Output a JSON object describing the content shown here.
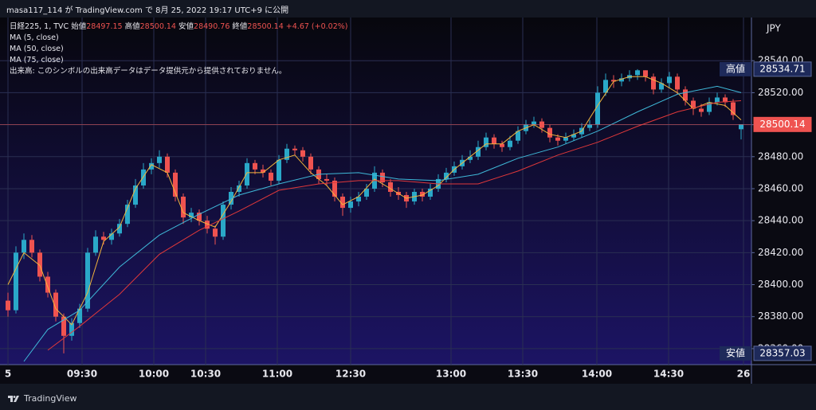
{
  "chart_data": {
    "type": "candlestick",
    "published": "masa117_114 が TradingView.com で 8月 25, 2022 19:17 UTC+9 に公開",
    "symbol": "日経225, 1, TVC",
    "ohlc_labels": {
      "open": "始値",
      "high": "高値",
      "low": "安値",
      "close": "終値"
    },
    "change": "+4.67 (+0.02%)",
    "volume_note": "出来高: このシンボルの出来高データはデータ提供元から提供されておりません。",
    "currency": "JPY",
    "brand": "TradingView",
    "up_color": "#2aa8c8",
    "down_color": "#ef5350",
    "grid": true,
    "xlim": [
      -1,
      93.3
    ],
    "ylim": [
      28350,
      28567
    ],
    "xticks": [
      {
        "value": 0,
        "label": "5"
      },
      {
        "value": 9.3,
        "label": "09:30"
      },
      {
        "value": 18.3,
        "label": "10:00"
      },
      {
        "value": 24.8,
        "label": "10:30"
      },
      {
        "value": 33.8,
        "label": "11:00"
      },
      {
        "value": 43,
        "label": "12:30"
      },
      {
        "value": 55.6,
        "label": "13:00"
      },
      {
        "value": 64.6,
        "label": "13:30"
      },
      {
        "value": 73.9,
        "label": "14:00"
      },
      {
        "value": 82.9,
        "label": "14:30"
      },
      {
        "value": 92.3,
        "label": "26"
      }
    ],
    "yticks": [
      {
        "value": 28360,
        "label": "28360.00"
      },
      {
        "value": 28380,
        "label": "28380.00"
      },
      {
        "value": 28400,
        "label": "28400.00"
      },
      {
        "value": 28420,
        "label": "28420.00"
      },
      {
        "value": 28440,
        "label": "28440.00"
      },
      {
        "value": 28460,
        "label": "28460.00"
      },
      {
        "value": 28480,
        "label": "28480.00"
      },
      {
        "value": 28500,
        "label": "28500.00"
      },
      {
        "value": 28520,
        "label": "28520.00"
      },
      {
        "value": 28540,
        "label": "28540.00"
      }
    ],
    "open": [
      28390,
      28384,
      28420,
      28428,
      28420,
      28405,
      28395,
      28380,
      28368,
      28376,
      28385,
      28420,
      28430,
      28428,
      28432,
      28438,
      28450,
      28462,
      28472,
      28476,
      28480,
      28470,
      28455,
      28442,
      28445,
      28440,
      28435,
      28430,
      28450,
      28458,
      28462,
      28476,
      28472,
      28470,
      28465,
      28478,
      28485,
      28484,
      28480,
      28472,
      28466,
      28465,
      28455,
      28448,
      28452,
      28455,
      28460,
      28470,
      28464,
      28458,
      28456,
      28452,
      28458,
      28455,
      28460,
      28466,
      28470,
      28474,
      28478,
      28480,
      28486,
      28492,
      28488,
      28486,
      28490,
      28496,
      28500,
      28502,
      28498,
      28492,
      28490,
      28492,
      28494,
      28498,
      28500,
      28520,
      28528,
      28527,
      28529,
      28531,
      28534,
      28530,
      28522,
      28526,
      28530,
      28522,
      28515,
      28510,
      28508,
      28514,
      28517,
      28514,
      28497.15
    ],
    "high": [
      28395,
      28424,
      28432,
      28431,
      28422,
      28408,
      28397,
      28382,
      28379,
      28388,
      28423,
      28434,
      28433,
      28435,
      28441,
      28453,
      28466,
      28476,
      28479,
      28484,
      28482,
      28472,
      28457,
      28448,
      28447,
      28443,
      28437,
      28452,
      28461,
      28465,
      28479,
      28478,
      28475,
      28472,
      28481,
      28488,
      28487,
      28486,
      28482,
      28474,
      28469,
      28467,
      28457,
      28455,
      28458,
      28463,
      28474,
      28472,
      28466,
      28461,
      28458,
      28460,
      28460,
      28463,
      28469,
      28473,
      28477,
      28481,
      28484,
      28490,
      28495,
      28494,
      28490,
      28493,
      28499,
      28503,
      28505,
      28504,
      28500,
      28494,
      28495,
      28497,
      28501,
      28503,
      28524,
      28532,
      28531,
      28532,
      28534,
      28534.71,
      28534,
      28532,
      28529,
      28533,
      28532,
      28524,
      28517,
      28513,
      28517,
      28520,
      28519,
      28516,
      28500.14
    ],
    "low": [
      28380,
      28382,
      28416,
      28417,
      28402,
      28392,
      28377,
      28357.03,
      28365,
      28373,
      28383,
      28418,
      28425,
      28425,
      28430,
      28436,
      28448,
      28460,
      28469,
      28473,
      28467,
      28452,
      28438,
      28439,
      28437,
      28432,
      28425,
      28428,
      28447,
      28455,
      28460,
      28469,
      28467,
      28462,
      28463,
      28476,
      28481,
      28477,
      28469,
      28463,
      28462,
      28452,
      28443,
      28445,
      28449,
      28453,
      28458,
      28461,
      28455,
      28453,
      28448,
      28450,
      28452,
      28453,
      28458,
      28464,
      28468,
      28472,
      28476,
      28478,
      28484,
      28485,
      28483,
      28484,
      28488,
      28494,
      28498,
      28495,
      28489,
      28487,
      28488,
      28490,
      28492,
      28496,
      28498,
      28518,
      28523,
      28524,
      28527,
      28528,
      28527,
      28519,
      28520,
      28523,
      28519,
      28512,
      28506,
      28505,
      28506,
      28512,
      28511,
      28503,
      28490.76
    ],
    "close": [
      28384,
      28420,
      28428,
      28420,
      28405,
      28395,
      28380,
      28368,
      28376,
      28385,
      28420,
      28430,
      28428,
      28432,
      28438,
      28450,
      28462,
      28472,
      28476,
      28480,
      28470,
      28455,
      28442,
      28445,
      28440,
      28435,
      28430,
      28450,
      28458,
      28462,
      28476,
      28472,
      28470,
      28465,
      28478,
      28485,
      28484,
      28480,
      28472,
      28466,
      28465,
      28455,
      28448,
      28452,
      28455,
      28460,
      28470,
      28464,
      28458,
      28456,
      28452,
      28458,
      28455,
      28460,
      28466,
      28470,
      28474,
      28478,
      28480,
      28486,
      28492,
      28488,
      28486,
      28490,
      28496,
      28500,
      28502,
      28498,
      28492,
      28490,
      28492,
      28494,
      28498,
      28500,
      28520,
      28528,
      28527,
      28529,
      28531,
      28534,
      28530,
      28522,
      28526,
      28530,
      28522,
      28515,
      28510,
      28508,
      28514,
      28517,
      28514,
      28506,
      28500.14
    ],
    "series": [
      {
        "name": "MA (5, close)",
        "color": "#f2b43c",
        "x": [
          0,
          2,
          4,
          6,
          8,
          10,
          12,
          14,
          16,
          18,
          20,
          22,
          24,
          26,
          28,
          30,
          32,
          34,
          36,
          38,
          40,
          42,
          44,
          46,
          48,
          50,
          52,
          54,
          56,
          58,
          60,
          62,
          64,
          66,
          68,
          70,
          72,
          74,
          76,
          78,
          80,
          82,
          84,
          86,
          88,
          90,
          92
        ],
        "values": [
          28400,
          28420,
          28412,
          28385,
          28375,
          28395,
          28427,
          28436,
          28460,
          28475,
          28470,
          28445,
          28440,
          28436,
          28452,
          28470,
          28470,
          28478,
          28481,
          28470,
          28462,
          28450,
          28455,
          28466,
          28460,
          28454,
          28456,
          28462,
          28472,
          28480,
          28488,
          28488,
          28496,
          28500,
          28494,
          28492,
          28496,
          28512,
          28527,
          28530,
          28530,
          28526,
          28520,
          28510,
          28514,
          28512,
          28503
        ]
      },
      {
        "name": "MA (50, close)",
        "color": "#3fb8d8",
        "x": [
          2,
          5,
          9,
          14,
          19,
          24,
          29,
          34,
          39,
          44,
          49,
          54,
          59,
          64,
          69,
          74,
          79,
          84,
          89,
          92
        ],
        "values": [
          28352,
          28372,
          28384,
          28411,
          28431,
          28444,
          28456,
          28463,
          28469,
          28470,
          28466,
          28465,
          28469,
          28479,
          28486,
          28496,
          28508,
          28519,
          28524,
          28520
        ]
      },
      {
        "name": "MA (75, close)",
        "color": "#e0383a",
        "x": [
          5,
          9,
          14,
          19,
          24,
          29,
          34,
          39,
          44,
          49,
          54,
          59,
          64,
          69,
          74,
          79,
          84,
          89,
          92
        ],
        "values": [
          28359,
          28374,
          28394,
          28419,
          28434,
          28446,
          28459,
          28463,
          28465,
          28465,
          28463,
          28463,
          28471,
          28481,
          28489,
          28499,
          28508,
          28514,
          28515
        ]
      }
    ]
  }
}
